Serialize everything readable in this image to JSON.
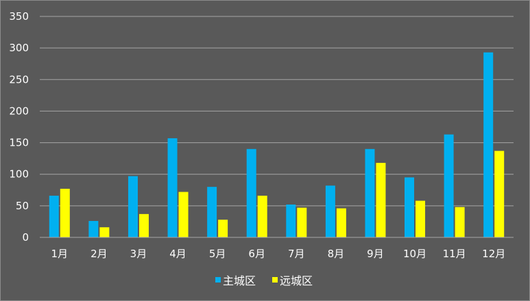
{
  "chart_data": {
    "type": "bar",
    "title": "",
    "xlabel": "",
    "ylabel": "",
    "ylim": [
      0,
      350
    ],
    "yticks": [
      0,
      50,
      100,
      150,
      200,
      250,
      300,
      350
    ],
    "grid": true,
    "legend_position": "bottom",
    "categories": [
      "1月",
      "2月",
      "3月",
      "4月",
      "5月",
      "6月",
      "7月",
      "8月",
      "9月",
      "10月",
      "11月",
      "12月"
    ],
    "series": [
      {
        "name": "主城区",
        "color": "#00b0f0",
        "values": [
          66,
          26,
          97,
          157,
          80,
          140,
          52,
          82,
          140,
          95,
          163,
          293
        ]
      },
      {
        "name": "远城区",
        "color": "#ffff00",
        "values": [
          77,
          16,
          37,
          72,
          28,
          66,
          47,
          46,
          118,
          58,
          48,
          137
        ]
      }
    ],
    "background_color": "#595959",
    "gridline_color": "#a6a6a6",
    "text_color": "#ffffff"
  }
}
